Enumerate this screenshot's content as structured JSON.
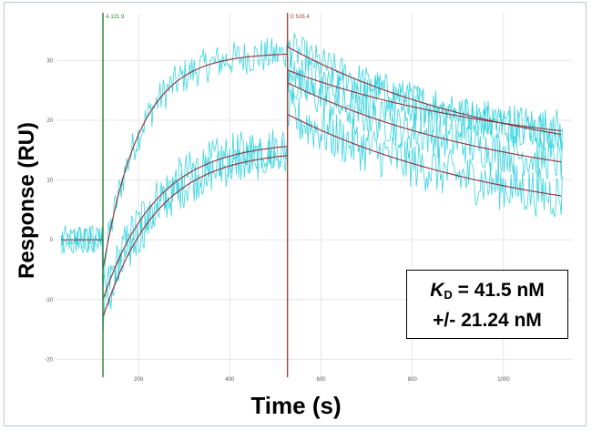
{
  "chart_data": {
    "type": "line",
    "title": "",
    "xlabel": "Time (s)",
    "ylabel": "Response (RU)",
    "xlim": [
      20,
      1150
    ],
    "ylim": [
      -23,
      38
    ],
    "x_ticks": [
      200,
      400,
      600,
      800,
      1000
    ],
    "y_ticks": [
      -20,
      -10,
      0,
      10,
      20,
      30
    ],
    "grid": true,
    "markers": [
      {
        "label": "A 121.9",
        "x": 121.9,
        "color": "#2e7d32"
      },
      {
        "label": "D 526.4",
        "x": 526.4,
        "color": "#a0453f"
      }
    ],
    "baseline": {
      "x_start": 30,
      "x_end": 121.9,
      "y": 0
    },
    "association": {
      "start": 121.9,
      "end": 526.4,
      "y0": [
        -5,
        -10,
        -13
      ],
      "plateau": [
        31.3,
        16.5,
        15.0
      ],
      "rate_s": [
        0.0125,
        0.0085,
        0.0085
      ]
    },
    "dissociation": {
      "start": 526.4,
      "end": 1130,
      "y_end": [
        17.6,
        18.2,
        13.0,
        7.3
      ],
      "y_start": [
        32.3,
        28.4,
        26.3,
        21.0
      ]
    },
    "noise_amplitude_ru": [
      3.0,
      3.8,
      3.5,
      4.2
    ],
    "colors": {
      "raw": "#2fd3de",
      "fit": "#8c2f3a",
      "grid": "#e6e6e6",
      "axis": "#999999"
    },
    "annotation": {
      "line1_value": " = 41.5 nM",
      "line1_symbol": "K",
      "line1_sub": "D",
      "line2": "+/- 21.24 nM"
    }
  }
}
